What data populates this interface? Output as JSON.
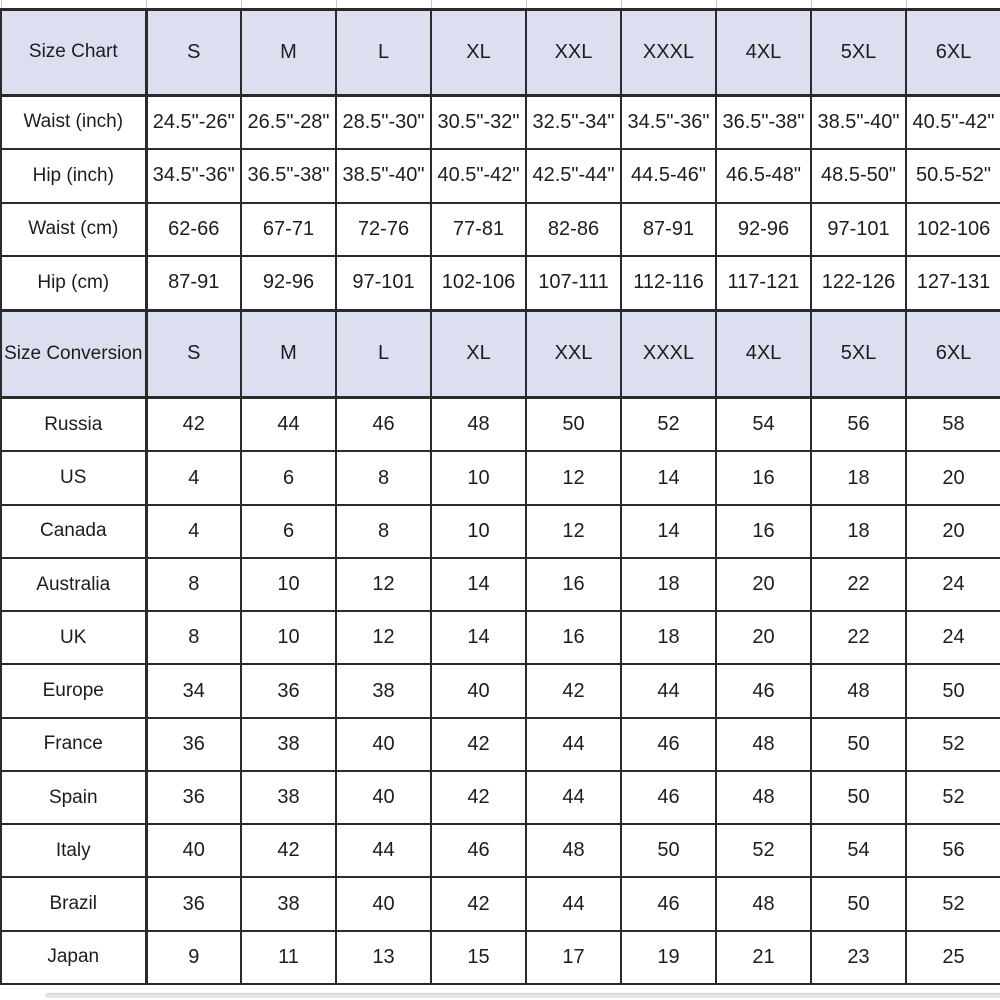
{
  "colors": {
    "header_bg": "#dcdfef",
    "border": "#2b2b2b",
    "text": "#1d1d1d"
  },
  "chart_data": [
    {
      "type": "table",
      "title": "Size Chart",
      "size_headers": [
        "S",
        "M",
        "L",
        "XL",
        "XXL",
        "XXXL",
        "4XL",
        "5XL",
        "6XL"
      ],
      "rows": [
        {
          "label": "Waist (inch)",
          "values": [
            "24.5\"-26\"",
            "26.5\"-28\"",
            "28.5\"-30\"",
            "30.5\"-32\"",
            "32.5\"-34\"",
            "34.5\"-36\"",
            "36.5\"-38\"",
            "38.5\"-40\"",
            "40.5\"-42\""
          ]
        },
        {
          "label": "Hip (inch)",
          "values": [
            "34.5\"-36\"",
            "36.5\"-38\"",
            "38.5\"-40\"",
            "40.5\"-42\"",
            "42.5\"-44\"",
            "44.5-46\"",
            "46.5-48\"",
            "48.5-50\"",
            "50.5-52\""
          ]
        },
        {
          "label": "Waist (cm)",
          "values": [
            "62-66",
            "67-71",
            "72-76",
            "77-81",
            "82-86",
            "87-91",
            "92-96",
            "97-101",
            "102-106"
          ]
        },
        {
          "label": "Hip (cm)",
          "values": [
            "87-91",
            "92-96",
            "97-101",
            "102-106",
            "107-111",
            "112-116",
            "117-121",
            "122-126",
            "127-131"
          ]
        }
      ]
    },
    {
      "type": "table",
      "title": "Size Conversion",
      "size_headers": [
        "S",
        "M",
        "L",
        "XL",
        "XXL",
        "XXXL",
        "4XL",
        "5XL",
        "6XL"
      ],
      "rows": [
        {
          "label": "Russia",
          "values": [
            "42",
            "44",
            "46",
            "48",
            "50",
            "52",
            "54",
            "56",
            "58"
          ]
        },
        {
          "label": "US",
          "values": [
            "4",
            "6",
            "8",
            "10",
            "12",
            "14",
            "16",
            "18",
            "20"
          ]
        },
        {
          "label": "Canada",
          "values": [
            "4",
            "6",
            "8",
            "10",
            "12",
            "14",
            "16",
            "18",
            "20"
          ]
        },
        {
          "label": "Australia",
          "values": [
            "8",
            "10",
            "12",
            "14",
            "16",
            "18",
            "20",
            "22",
            "24"
          ]
        },
        {
          "label": "UK",
          "values": [
            "8",
            "10",
            "12",
            "14",
            "16",
            "18",
            "20",
            "22",
            "24"
          ]
        },
        {
          "label": "Europe",
          "values": [
            "34",
            "36",
            "38",
            "40",
            "42",
            "44",
            "46",
            "48",
            "50"
          ]
        },
        {
          "label": "France",
          "values": [
            "36",
            "38",
            "40",
            "42",
            "44",
            "46",
            "48",
            "50",
            "52"
          ]
        },
        {
          "label": "Spain",
          "values": [
            "36",
            "38",
            "40",
            "42",
            "44",
            "46",
            "48",
            "50",
            "52"
          ]
        },
        {
          "label": "Italy",
          "values": [
            "40",
            "42",
            "44",
            "46",
            "48",
            "50",
            "52",
            "54",
            "56"
          ]
        },
        {
          "label": "Brazil",
          "values": [
            "36",
            "38",
            "40",
            "42",
            "44",
            "46",
            "48",
            "50",
            "52"
          ]
        },
        {
          "label": "Japan",
          "values": [
            "9",
            "11",
            "13",
            "15",
            "17",
            "19",
            "21",
            "23",
            "25"
          ]
        }
      ]
    }
  ]
}
